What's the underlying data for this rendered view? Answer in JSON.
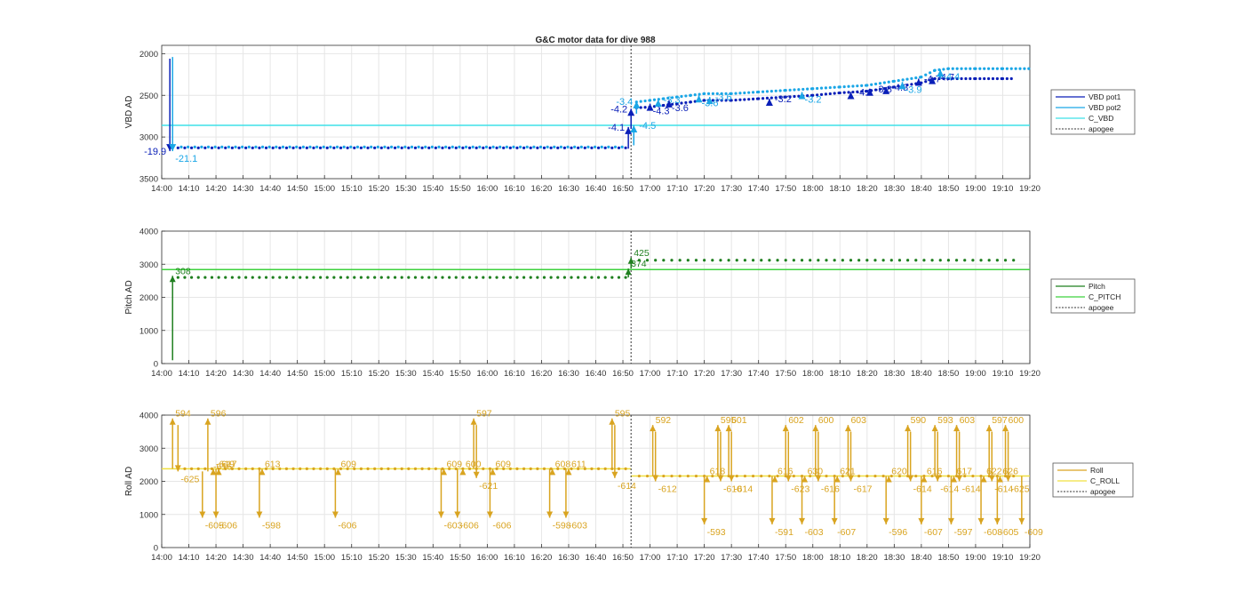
{
  "figure_title": "G&C motor data for dive 988",
  "colors": {
    "vbd_pot1": "#0a1fb8",
    "vbd_pot2": "#1aa6e6",
    "c_vbd": "#3fe0e8",
    "pitch": "#1f7f1f",
    "c_pitch": "#3fd23f",
    "roll": "#d9a420",
    "c_roll": "#f0e040",
    "apogee": "#333333",
    "grid": "#e6e6e6"
  },
  "chart_data": [
    {
      "type": "line",
      "title": "G&C motor data for dive 988",
      "xlabel": "",
      "ylabel": "VBD AD",
      "y_reversed": true,
      "ylim": [
        1900,
        3500
      ],
      "yticks": [
        2000,
        2500,
        3000,
        3500
      ],
      "xlim": [
        "14:00",
        "19:20"
      ],
      "xticks": [
        "14:00",
        "14:10",
        "14:20",
        "14:30",
        "14:40",
        "14:50",
        "15:00",
        "15:10",
        "15:20",
        "15:30",
        "15:40",
        "15:50",
        "16:00",
        "16:10",
        "16:20",
        "16:30",
        "16:40",
        "16:50",
        "17:00",
        "17:10",
        "17:20",
        "17:30",
        "17:40",
        "17:50",
        "18:00",
        "18:10",
        "18:20",
        "18:30",
        "18:40",
        "18:50",
        "19:00",
        "19:10",
        "19:20"
      ],
      "grid": true,
      "legend_placement": "right",
      "apogee": "16:53",
      "series": [
        {
          "name": "VBD pot1",
          "role": "pot1",
          "flat_value": 3130,
          "flat_range": [
            "14:06",
            "16:51"
          ],
          "late_points": [
            [
              "16:55",
              2650
            ],
            [
              "17:00",
              2640
            ],
            [
              "17:05",
              2620
            ],
            [
              "17:10",
              2600
            ],
            [
              "17:15",
              2580
            ],
            [
              "17:20",
              2560
            ],
            [
              "17:30",
              2560
            ],
            [
              "17:40",
              2540
            ],
            [
              "17:50",
              2520
            ],
            [
              "18:00",
              2500
            ],
            [
              "18:10",
              2470
            ],
            [
              "18:20",
              2450
            ],
            [
              "18:30",
              2400
            ],
            [
              "18:40",
              2350
            ],
            [
              "18:45",
              2300
            ],
            [
              "18:50",
              2300
            ],
            [
              "19:00",
              2300
            ],
            [
              "19:10",
              2300
            ],
            [
              "19:14",
              2300
            ]
          ]
        },
        {
          "name": "VBD pot2",
          "role": "pot2",
          "flat_value": 3120,
          "flat_range": [
            "14:06",
            "16:51"
          ],
          "late_points": [
            [
              "16:55",
              2580
            ],
            [
              "17:00",
              2560
            ],
            [
              "17:05",
              2540
            ],
            [
              "17:10",
              2520
            ],
            [
              "17:15",
              2500
            ],
            [
              "17:20",
              2480
            ],
            [
              "17:30",
              2480
            ],
            [
              "17:40",
              2460
            ],
            [
              "17:50",
              2440
            ],
            [
              "18:00",
              2420
            ],
            [
              "18:10",
              2400
            ],
            [
              "18:20",
              2380
            ],
            [
              "18:30",
              2330
            ],
            [
              "18:40",
              2280
            ],
            [
              "18:45",
              2200
            ],
            [
              "18:50",
              2180
            ],
            [
              "19:00",
              2180
            ],
            [
              "19:10",
              2180
            ],
            [
              "19:20",
              2180
            ]
          ]
        },
        {
          "name": "C_VBD",
          "role": "command",
          "value": 2860
        },
        {
          "name": "apogee",
          "role": "apogee"
        }
      ],
      "arrows": [
        {
          "t": "14:03",
          "from": 2060,
          "to": 3170,
          "series": "pot1",
          "label": "-19.9",
          "label_side": "left"
        },
        {
          "t": "14:04",
          "from": 2040,
          "to": 3170,
          "series": "pot2",
          "label": "-21.1",
          "label_side": "below"
        },
        {
          "t": "16:52",
          "from": 3140,
          "to": 2880,
          "series": "pot1",
          "label": "-4.1",
          "label_side": "left"
        },
        {
          "t": "16:53",
          "from": 2900,
          "to": 2660,
          "series": "pot1",
          "label": "-4.2",
          "label_side": "left"
        },
        {
          "t": "16:54",
          "from": 3100,
          "to": 2860,
          "series": "pot2",
          "label": "-4.5",
          "label_side": "right"
        },
        {
          "t": "16:55",
          "from": 2720,
          "to": 2570,
          "series": "pot2",
          "label": "-3.4",
          "label_side": "left"
        },
        {
          "t": "17:00",
          "from": 2660,
          "to": 2600,
          "series": "pot1",
          "label": "-4.3",
          "label_side": "below"
        },
        {
          "t": "17:03",
          "from": 2600,
          "to": 2550,
          "series": "pot2",
          "label": "-3.3",
          "label_side": "right"
        },
        {
          "t": "17:07",
          "from": 2640,
          "to": 2560,
          "series": "pot1",
          "label": "-3.6",
          "label_side": "below"
        },
        {
          "t": "17:18",
          "from": 2560,
          "to": 2500,
          "series": "pot2",
          "label": "-3.6",
          "label_side": "below"
        },
        {
          "t": "17:22",
          "from": 2560,
          "to": 2520,
          "series": "pot2",
          "label": "-3.6",
          "label_side": "right"
        },
        {
          "t": "17:44",
          "from": 2580,
          "to": 2540,
          "series": "pot1",
          "label": "-3.2",
          "label_side": "right"
        },
        {
          "t": "17:56",
          "from": 2540,
          "to": 2460,
          "series": "pot2",
          "label": "-3.2",
          "label_side": "below"
        },
        {
          "t": "18:14",
          "from": 2480,
          "to": 2460,
          "series": "pot1",
          "label": "-4.2",
          "label_side": "right"
        },
        {
          "t": "18:21",
          "from": 2460,
          "to": 2420,
          "series": "pot1",
          "label": "-3.8",
          "label_side": "right"
        },
        {
          "t": "18:27",
          "from": 2440,
          "to": 2400,
          "series": "pot1",
          "label": "-4.3",
          "label_side": "right"
        },
        {
          "t": "18:33",
          "from": 2400,
          "to": 2340,
          "series": "pot2",
          "label": "-3.9",
          "label_side": "below"
        },
        {
          "t": "18:39",
          "from": 2360,
          "to": 2300,
          "series": "pot1",
          "label": "-4.7",
          "label_side": "right"
        },
        {
          "t": "18:44",
          "from": 2360,
          "to": 2280,
          "series": "pot1",
          "label": "-4.7",
          "label_side": "right"
        },
        {
          "t": "18:47",
          "from": 2300,
          "to": 2190,
          "series": "pot2",
          "label": "-4.4",
          "label_side": "below"
        }
      ]
    },
    {
      "type": "line",
      "title": "",
      "xlabel": "",
      "ylabel": "Pitch AD",
      "ylim": [
        0,
        4000
      ],
      "yticks": [
        0,
        1000,
        2000,
        3000,
        4000
      ],
      "xlim": [
        "14:00",
        "19:20"
      ],
      "xticks": [
        "14:00",
        "14:10",
        "14:20",
        "14:30",
        "14:40",
        "14:50",
        "15:00",
        "15:10",
        "15:20",
        "15:30",
        "15:40",
        "15:50",
        "16:00",
        "16:10",
        "16:20",
        "16:30",
        "16:40",
        "16:50",
        "17:00",
        "17:10",
        "17:20",
        "17:30",
        "17:40",
        "17:50",
        "18:00",
        "18:10",
        "18:20",
        "18:30",
        "18:40",
        "18:50",
        "19:00",
        "19:10",
        "19:20"
      ],
      "grid": true,
      "legend_placement": "right",
      "apogee": "16:53",
      "series": [
        {
          "name": "Pitch",
          "role": "pitch",
          "early_value": 2600,
          "early_range": [
            "14:06",
            "16:51"
          ],
          "late_value": 3120,
          "late_range": [
            "16:56",
            "19:15"
          ]
        },
        {
          "name": "C_PITCH",
          "role": "command",
          "value": 2840
        },
        {
          "name": "apogee",
          "role": "apogee"
        }
      ],
      "arrows": [
        {
          "t": "14:04",
          "from": 100,
          "to": 2650,
          "label": "308"
        },
        {
          "t": "16:52",
          "from": 2600,
          "to": 2870,
          "label": "374"
        },
        {
          "t": "16:53",
          "from": 2870,
          "to": 3200,
          "label": "425"
        }
      ]
    },
    {
      "type": "line",
      "title": "",
      "xlabel": "",
      "ylabel": "Roll AD",
      "ylim": [
        0,
        4000
      ],
      "yticks": [
        0,
        1000,
        2000,
        3000,
        4000
      ],
      "xlim": [
        "14:00",
        "19:20"
      ],
      "xticks": [
        "14:00",
        "14:10",
        "14:20",
        "14:30",
        "14:40",
        "14:50",
        "15:00",
        "15:10",
        "15:20",
        "15:30",
        "15:40",
        "15:50",
        "16:00",
        "16:10",
        "16:20",
        "16:30",
        "16:40",
        "16:50",
        "17:00",
        "17:10",
        "17:20",
        "17:30",
        "17:40",
        "17:50",
        "18:00",
        "18:10",
        "18:20",
        "18:30",
        "18:40",
        "18:50",
        "19:00",
        "19:10",
        "19:20"
      ],
      "grid": true,
      "legend_placement": "right",
      "apogee": "16:53",
      "series": [
        {
          "name": "Roll",
          "role": "roll",
          "early_value": 2380,
          "early_range": [
            "14:06",
            "16:51"
          ],
          "late_value": 2160,
          "late_range": [
            "16:56",
            "19:15"
          ]
        },
        {
          "name": "C_ROLL",
          "role": "command",
          "early_value": 2380,
          "late_value": 2160,
          "switch": "16:53"
        },
        {
          "name": "apogee",
          "role": "apogee"
        }
      ],
      "arrows": [
        {
          "t": "14:04",
          "from": 2380,
          "to": 3900,
          "label": "594"
        },
        {
          "t": "14:06",
          "from": 3700,
          "to": 2300,
          "label": "-625"
        },
        {
          "t": "14:15",
          "from": 2300,
          "to": 900,
          "label": "-605"
        },
        {
          "t": "14:17",
          "from": 2300,
          "to": 3900,
          "label": "596"
        },
        {
          "t": "14:18",
          "from": 2300,
          "to": 2300,
          "label": "-616"
        },
        {
          "t": "14:19",
          "from": 2200,
          "to": 2380,
          "label": "-619"
        },
        {
          "t": "14:20",
          "from": 2380,
          "to": 900,
          "label": "-606"
        },
        {
          "t": "14:21",
          "from": 2300,
          "to": 2380,
          "label": "617"
        },
        {
          "t": "14:36",
          "from": 2380,
          "to": 900,
          "label": "-598"
        },
        {
          "t": "14:37",
          "from": 2300,
          "to": 2380,
          "label": "613"
        },
        {
          "t": "15:04",
          "from": 2380,
          "to": 900,
          "label": "-606"
        },
        {
          "t": "15:05",
          "from": 2300,
          "to": 2380,
          "label": "609"
        },
        {
          "t": "15:43",
          "from": 2380,
          "to": 900,
          "label": "-603"
        },
        {
          "t": "15:44",
          "from": 2300,
          "to": 2380,
          "label": "609"
        },
        {
          "t": "15:49",
          "from": 2380,
          "to": 900,
          "label": "-606"
        },
        {
          "t": "15:51",
          "from": 2300,
          "to": 2380,
          "label": "600"
        },
        {
          "t": "15:55",
          "from": 2380,
          "to": 3900,
          "label": "597"
        },
        {
          "t": "15:56",
          "from": 3700,
          "to": 2100,
          "label": "-621"
        },
        {
          "t": "16:01",
          "from": 2380,
          "to": 900,
          "label": "-606"
        },
        {
          "t": "16:02",
          "from": 2300,
          "to": 2380,
          "label": "609"
        },
        {
          "t": "16:23",
          "from": 2380,
          "to": 900,
          "label": "-598"
        },
        {
          "t": "16:24",
          "from": 2300,
          "to": 2380,
          "label": "608"
        },
        {
          "t": "16:29",
          "from": 2380,
          "to": 900,
          "label": "-603"
        },
        {
          "t": "16:30",
          "from": 2300,
          "to": 2380,
          "label": "611"
        },
        {
          "t": "16:46",
          "from": 2380,
          "to": 3900,
          "label": "595"
        },
        {
          "t": "16:47",
          "from": 3700,
          "to": 2100,
          "label": "-614"
        },
        {
          "t": "17:01",
          "from": 2160,
          "to": 3700,
          "label": "592"
        },
        {
          "t": "17:02",
          "from": 3500,
          "to": 2000,
          "label": "-612"
        },
        {
          "t": "17:20",
          "from": 2160,
          "to": 700,
          "label": "-593"
        },
        {
          "t": "17:21",
          "from": 2100,
          "to": 2160,
          "label": "618"
        },
        {
          "t": "17:25",
          "from": 2160,
          "to": 3700,
          "label": "595"
        },
        {
          "t": "17:26",
          "from": 3500,
          "to": 2000,
          "label": "-610"
        },
        {
          "t": "17:29",
          "from": 2160,
          "to": 3700,
          "label": "601"
        },
        {
          "t": "17:30",
          "from": 3500,
          "to": 2000,
          "label": "-614"
        },
        {
          "t": "17:45",
          "from": 2160,
          "to": 700,
          "label": "-591"
        },
        {
          "t": "17:46",
          "from": 2100,
          "to": 2160,
          "label": "616"
        },
        {
          "t": "17:50",
          "from": 2160,
          "to": 3700,
          "label": "602"
        },
        {
          "t": "17:51",
          "from": 3500,
          "to": 2000,
          "label": "-623"
        },
        {
          "t": "17:56",
          "from": 2160,
          "to": 700,
          "label": "-603"
        },
        {
          "t": "17:57",
          "from": 2100,
          "to": 2160,
          "label": "630"
        },
        {
          "t": "18:01",
          "from": 2160,
          "to": 3700,
          "label": "600"
        },
        {
          "t": "18:02",
          "from": 3500,
          "to": 2000,
          "label": "-616"
        },
        {
          "t": "18:08",
          "from": 2160,
          "to": 700,
          "label": "-607"
        },
        {
          "t": "18:09",
          "from": 2100,
          "to": 2160,
          "label": "621"
        },
        {
          "t": "18:13",
          "from": 2160,
          "to": 3700,
          "label": "603"
        },
        {
          "t": "18:14",
          "from": 3500,
          "to": 2000,
          "label": "-617"
        },
        {
          "t": "18:27",
          "from": 2160,
          "to": 700,
          "label": "-596"
        },
        {
          "t": "18:28",
          "from": 2100,
          "to": 2160,
          "label": "620"
        },
        {
          "t": "18:35",
          "from": 2160,
          "to": 3700,
          "label": "590"
        },
        {
          "t": "18:36",
          "from": 3500,
          "to": 2000,
          "label": "-614"
        },
        {
          "t": "18:40",
          "from": 2160,
          "to": 700,
          "label": "-607"
        },
        {
          "t": "18:41",
          "from": 2100,
          "to": 2160,
          "label": "616"
        },
        {
          "t": "18:45",
          "from": 2160,
          "to": 3700,
          "label": "593"
        },
        {
          "t": "18:46",
          "from": 3500,
          "to": 2000,
          "label": "-614"
        },
        {
          "t": "18:51",
          "from": 2160,
          "to": 700,
          "label": "-597"
        },
        {
          "t": "18:52",
          "from": 2100,
          "to": 2160,
          "label": "617"
        },
        {
          "t": "18:53",
          "from": 2160,
          "to": 3700,
          "label": "603"
        },
        {
          "t": "18:54",
          "from": 3500,
          "to": 2000,
          "label": "-614"
        },
        {
          "t": "19:02",
          "from": 2160,
          "to": 700,
          "label": "-608"
        },
        {
          "t": "19:03",
          "from": 2100,
          "to": 2160,
          "label": "622"
        },
        {
          "t": "19:05",
          "from": 2160,
          "to": 3700,
          "label": "597"
        },
        {
          "t": "19:06",
          "from": 3500,
          "to": 2000,
          "label": "-614"
        },
        {
          "t": "19:08",
          "from": 2160,
          "to": 700,
          "label": "-605"
        },
        {
          "t": "19:09",
          "from": 2100,
          "to": 2160,
          "label": "626"
        },
        {
          "t": "19:11",
          "from": 2160,
          "to": 3700,
          "label": "600"
        },
        {
          "t": "19:12",
          "from": 3500,
          "to": 2000,
          "label": "-625"
        },
        {
          "t": "19:17",
          "from": 2160,
          "to": 700,
          "label": "-609"
        }
      ]
    }
  ]
}
